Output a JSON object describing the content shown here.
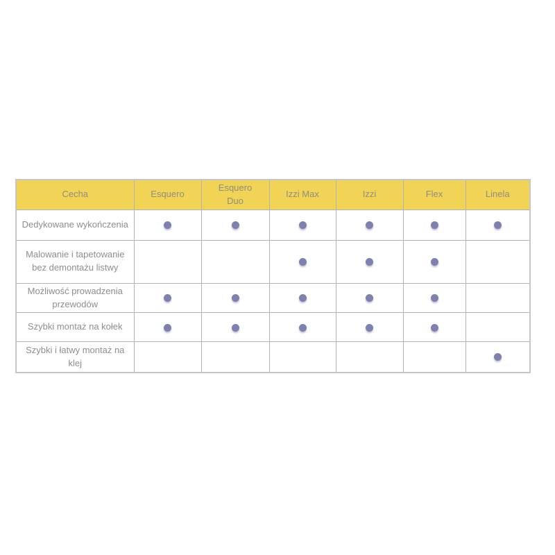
{
  "table": {
    "columns": [
      {
        "label": "Cecha"
      },
      {
        "label": "Esquero"
      },
      {
        "label": "Esquero Duo"
      },
      {
        "label": "Izzi Max"
      },
      {
        "label": "Izzi"
      },
      {
        "label": "Flex"
      },
      {
        "label": "Linela"
      }
    ],
    "rows": [
      {
        "feature": "Dedykowane wykończenia",
        "values": [
          true,
          true,
          true,
          true,
          true,
          true
        ]
      },
      {
        "feature": "Malowanie i tapetowanie bez demontażu listwy",
        "values": [
          false,
          false,
          true,
          true,
          true,
          false
        ]
      },
      {
        "feature": "Możliwość prowadzenia przewodów",
        "values": [
          true,
          true,
          true,
          true,
          true,
          false
        ]
      },
      {
        "feature": "Szybki montaż na kołek",
        "values": [
          true,
          true,
          true,
          true,
          true,
          false
        ]
      },
      {
        "feature": "Szybki i łatwy montaż na klej",
        "values": [
          false,
          false,
          false,
          false,
          false,
          true
        ]
      }
    ]
  },
  "icons": {
    "feature_dot": "filled-circle"
  },
  "colors": {
    "header_bg": "#f1d356",
    "header_text": "#908e7f",
    "body_text": "#8e8e8e",
    "dot": "#7e81af",
    "border_inner": "#b3b3b3",
    "border_outer": "#c6c6c6",
    "page_bg": "#ffffff"
  }
}
